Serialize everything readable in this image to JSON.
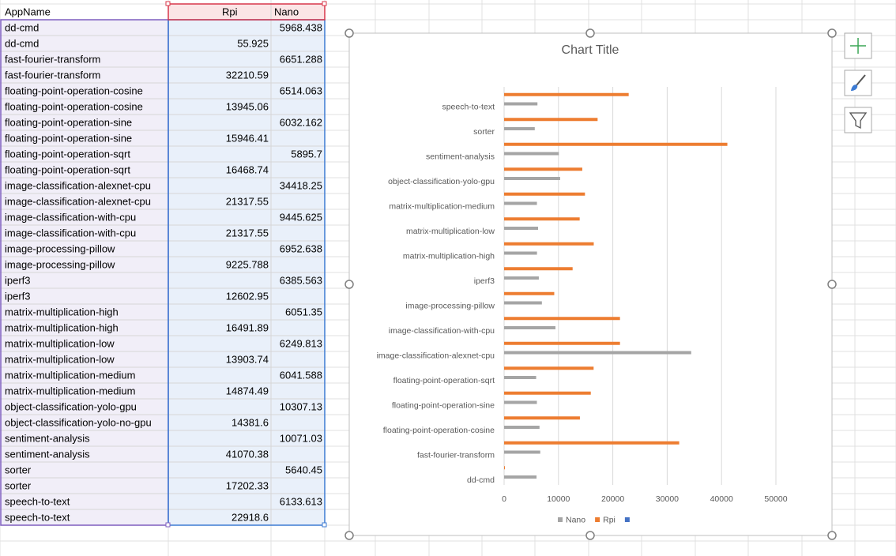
{
  "table": {
    "header": [
      "AppName",
      "Rpi",
      "Nano"
    ],
    "rows": [
      [
        "dd-cmd",
        null,
        "5968.438"
      ],
      [
        "dd-cmd",
        "55.925",
        null
      ],
      [
        "fast-fourier-transform",
        null,
        "6651.288"
      ],
      [
        "fast-fourier-transform",
        "32210.59",
        null
      ],
      [
        "floating-point-operation-cosine",
        null,
        "6514.063"
      ],
      [
        "floating-point-operation-cosine",
        "13945.06",
        null
      ],
      [
        "floating-point-operation-sine",
        null,
        "6032.162"
      ],
      [
        "floating-point-operation-sine",
        "15946.41",
        null
      ],
      [
        "floating-point-operation-sqrt",
        null,
        "5895.7"
      ],
      [
        "floating-point-operation-sqrt",
        "16468.74",
        null
      ],
      [
        "image-classification-alexnet-cpu",
        null,
        "34418.25"
      ],
      [
        "image-classification-alexnet-cpu",
        "21317.55",
        null
      ],
      [
        "image-classification-with-cpu",
        null,
        "9445.625"
      ],
      [
        "image-classification-with-cpu",
        "21317.55",
        null
      ],
      [
        "image-processing-pillow",
        null,
        "6952.638"
      ],
      [
        "image-processing-pillow",
        "9225.788",
        null
      ],
      [
        "iperf3",
        null,
        "6385.563"
      ],
      [
        "iperf3",
        "12602.95",
        null
      ],
      [
        "matrix-multiplication-high",
        null,
        "6051.35"
      ],
      [
        "matrix-multiplication-high",
        "16491.89",
        null
      ],
      [
        "matrix-multiplication-low",
        null,
        "6249.813"
      ],
      [
        "matrix-multiplication-low",
        "13903.74",
        null
      ],
      [
        "matrix-multiplication-medium",
        null,
        "6041.588"
      ],
      [
        "matrix-multiplication-medium",
        "14874.49",
        null
      ],
      [
        "object-classification-yolo-gpu",
        null,
        "10307.13"
      ],
      [
        "object-classification-yolo-no-gpu",
        "14381.6",
        null
      ],
      [
        "sentiment-analysis",
        null,
        "10071.03"
      ],
      [
        "sentiment-analysis",
        "41070.38",
        null
      ],
      [
        "sorter",
        null,
        "5640.45"
      ],
      [
        "sorter",
        "17202.33",
        null
      ],
      [
        "speech-to-text",
        null,
        "6133.613"
      ],
      [
        "speech-to-text",
        "22918.6",
        null
      ]
    ]
  },
  "chart_data": {
    "type": "barh",
    "title": "Chart Title",
    "categories": [
      "dd-cmd",
      null,
      "fast-fourier-transform",
      null,
      "floating-point-operation-cosine",
      null,
      "floating-point-operation-sine",
      null,
      "floating-point-operation-sqrt",
      null,
      "image-classification-alexnet-cpu",
      null,
      "image-classification-with-cpu",
      null,
      "image-processing-pillow",
      null,
      "iperf3",
      null,
      "matrix-multiplication-high",
      null,
      "matrix-multiplication-low",
      null,
      "matrix-multiplication-medium",
      null,
      "object-classification-yolo-gpu",
      null,
      "sentiment-analysis",
      null,
      "sorter",
      null,
      "speech-to-text",
      null
    ],
    "series": [
      {
        "name": "Nano",
        "color": "#a5a5a5",
        "values": [
          5968.438,
          null,
          6651.288,
          null,
          6514.063,
          null,
          6032.162,
          null,
          5895.7,
          null,
          34418.25,
          null,
          9445.625,
          null,
          6952.638,
          null,
          6385.563,
          null,
          6051.35,
          null,
          6249.813,
          null,
          6041.588,
          null,
          10307.13,
          null,
          10071.03,
          null,
          5640.45,
          null,
          6133.613,
          null
        ]
      },
      {
        "name": "Rpi",
        "color": "#ed7d31",
        "values": [
          null,
          55.925,
          null,
          32210.59,
          null,
          13945.06,
          null,
          15946.41,
          null,
          16468.74,
          null,
          21317.55,
          null,
          21317.55,
          null,
          9225.788,
          null,
          12602.95,
          null,
          16491.89,
          null,
          13903.74,
          null,
          14874.49,
          null,
          14381.6,
          null,
          41070.38,
          null,
          17202.33,
          null,
          22918.6
        ]
      }
    ],
    "xlim": [
      0,
      50000
    ],
    "xticks": [
      0,
      10000,
      20000,
      30000,
      40000,
      50000
    ],
    "grid": true,
    "legend": "bottom"
  }
}
